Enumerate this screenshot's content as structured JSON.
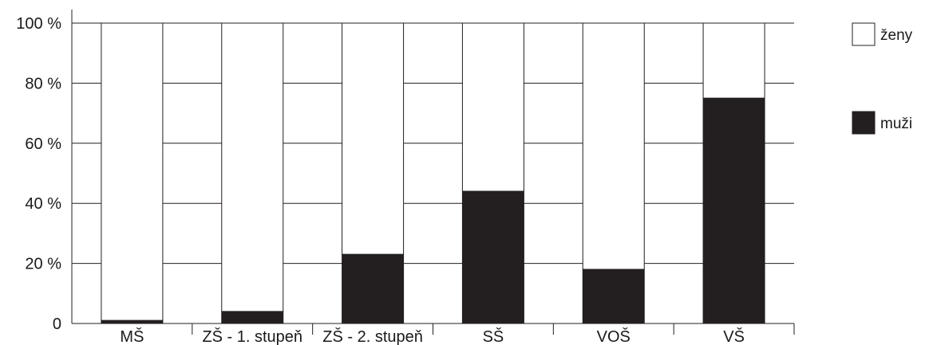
{
  "chart_data": {
    "type": "bar",
    "stacked": true,
    "percent_stacked": true,
    "categories": [
      "MŠ",
      "ZŠ - 1. stupeň",
      "ZŠ - 2. stupeň",
      "SŠ",
      "VOŠ",
      "VŠ"
    ],
    "series": [
      {
        "name": "muži",
        "values": [
          1,
          4,
          23,
          44,
          18,
          75
        ],
        "color": "#231f20"
      },
      {
        "name": "ženy",
        "values": [
          99,
          96,
          77,
          56,
          82,
          25
        ],
        "color": "#ffffff"
      }
    ],
    "yticks": [
      "0",
      "20 %",
      "40 %",
      "60 %",
      "80 %",
      "100 %"
    ],
    "ylim": [
      0,
      100
    ],
    "grid": true,
    "legend": {
      "placement": "right",
      "items": [
        {
          "name": "ženy",
          "color": "#ffffff"
        },
        {
          "name": "muži",
          "color": "#231f20"
        }
      ]
    }
  }
}
